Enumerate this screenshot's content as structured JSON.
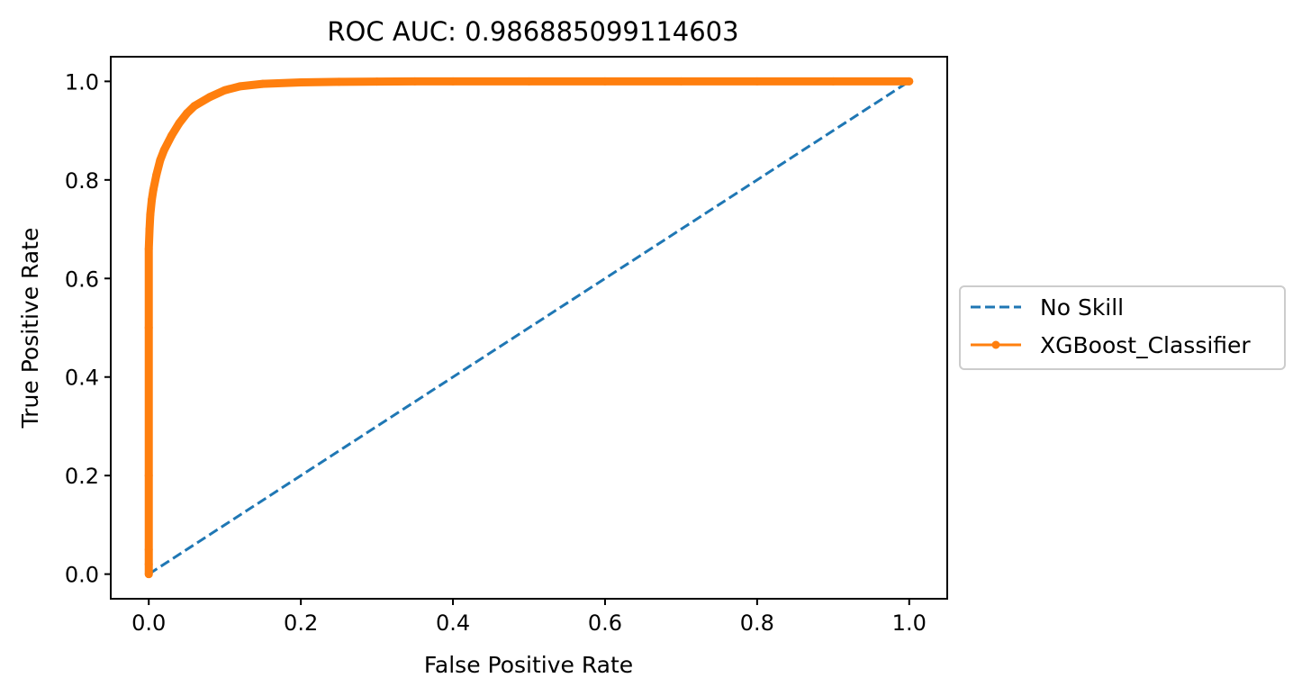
{
  "chart_data": {
    "type": "line",
    "title": "ROC AUC: 0.986885099114603",
    "xlabel": "False Positive Rate",
    "ylabel": "True Positive Rate",
    "xlim": [
      -0.05,
      1.05
    ],
    "ylim": [
      -0.05,
      1.05
    ],
    "xticks": [
      "0.0",
      "0.2",
      "0.4",
      "0.6",
      "0.8",
      "1.0"
    ],
    "yticks": [
      "0.0",
      "0.2",
      "0.4",
      "0.6",
      "0.8",
      "1.0"
    ],
    "grid": false,
    "legend_position": "center-left outside right",
    "series": [
      {
        "name": "No Skill",
        "color": "#1f77b4",
        "style": "dashed",
        "x": [
          0,
          1
        ],
        "y": [
          0,
          1
        ]
      },
      {
        "name": "XGBoost_Classifier",
        "color": "#ff7f0e",
        "style": "solid-marker",
        "x": [
          0,
          0,
          0,
          0,
          0,
          0,
          0.001,
          0.002,
          0.004,
          0.006,
          0.01,
          0.015,
          0.02,
          0.03,
          0.04,
          0.05,
          0.06,
          0.08,
          0.1,
          0.12,
          0.15,
          0.2,
          0.25,
          0.3,
          0.35,
          0.4,
          0.5,
          0.6,
          0.7,
          0.8,
          0.9,
          1.0
        ],
        "y": [
          0,
          0.02,
          0.05,
          0.2,
          0.5,
          0.66,
          0.7,
          0.73,
          0.76,
          0.78,
          0.81,
          0.84,
          0.86,
          0.89,
          0.915,
          0.935,
          0.95,
          0.968,
          0.982,
          0.99,
          0.995,
          0.998,
          0.999,
          0.9995,
          1.0,
          1.0,
          1.0,
          1.0,
          1.0,
          1.0,
          1.0,
          1.0
        ]
      }
    ]
  }
}
